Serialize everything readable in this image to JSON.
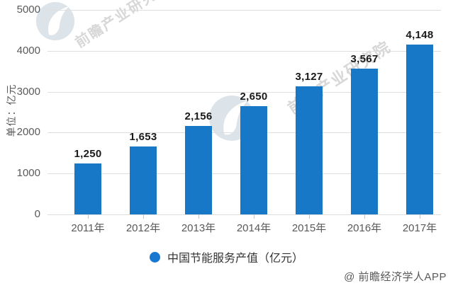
{
  "chart_data": {
    "type": "bar",
    "title": "",
    "categories": [
      "2011年",
      "2012年",
      "2013年",
      "2014年",
      "2015年",
      "2016年",
      "2017年"
    ],
    "values": [
      1250,
      1653,
      2156,
      2650,
      3127,
      3567,
      4148
    ],
    "value_labels": [
      "1,250",
      "1,653",
      "2,156",
      "2,650",
      "3,127",
      "3,567",
      "4,148"
    ],
    "xlabel": "",
    "ylabel": "单位：亿元",
    "y_ticks": [
      0,
      1000,
      2000,
      3000,
      4000,
      5000
    ],
    "ylim": [
      0,
      5000
    ],
    "grid": true,
    "legend": {
      "label": "中国节能服务产值（亿元）",
      "position": "bottom-center",
      "marker": "circle"
    },
    "colors": {
      "bar": "#1778C7",
      "legend_marker": "#1778D2",
      "grid_line": "#DEDEDE",
      "axis_text": "#595959",
      "data_label": "#1A1A1A",
      "legend_text": "#333333"
    }
  },
  "watermark": {
    "brand_text": "前瞻产业研究院",
    "logo_name": "qianzhan-logo"
  },
  "footer": {
    "attribution": "@ 前瞻经济学人APP"
  }
}
